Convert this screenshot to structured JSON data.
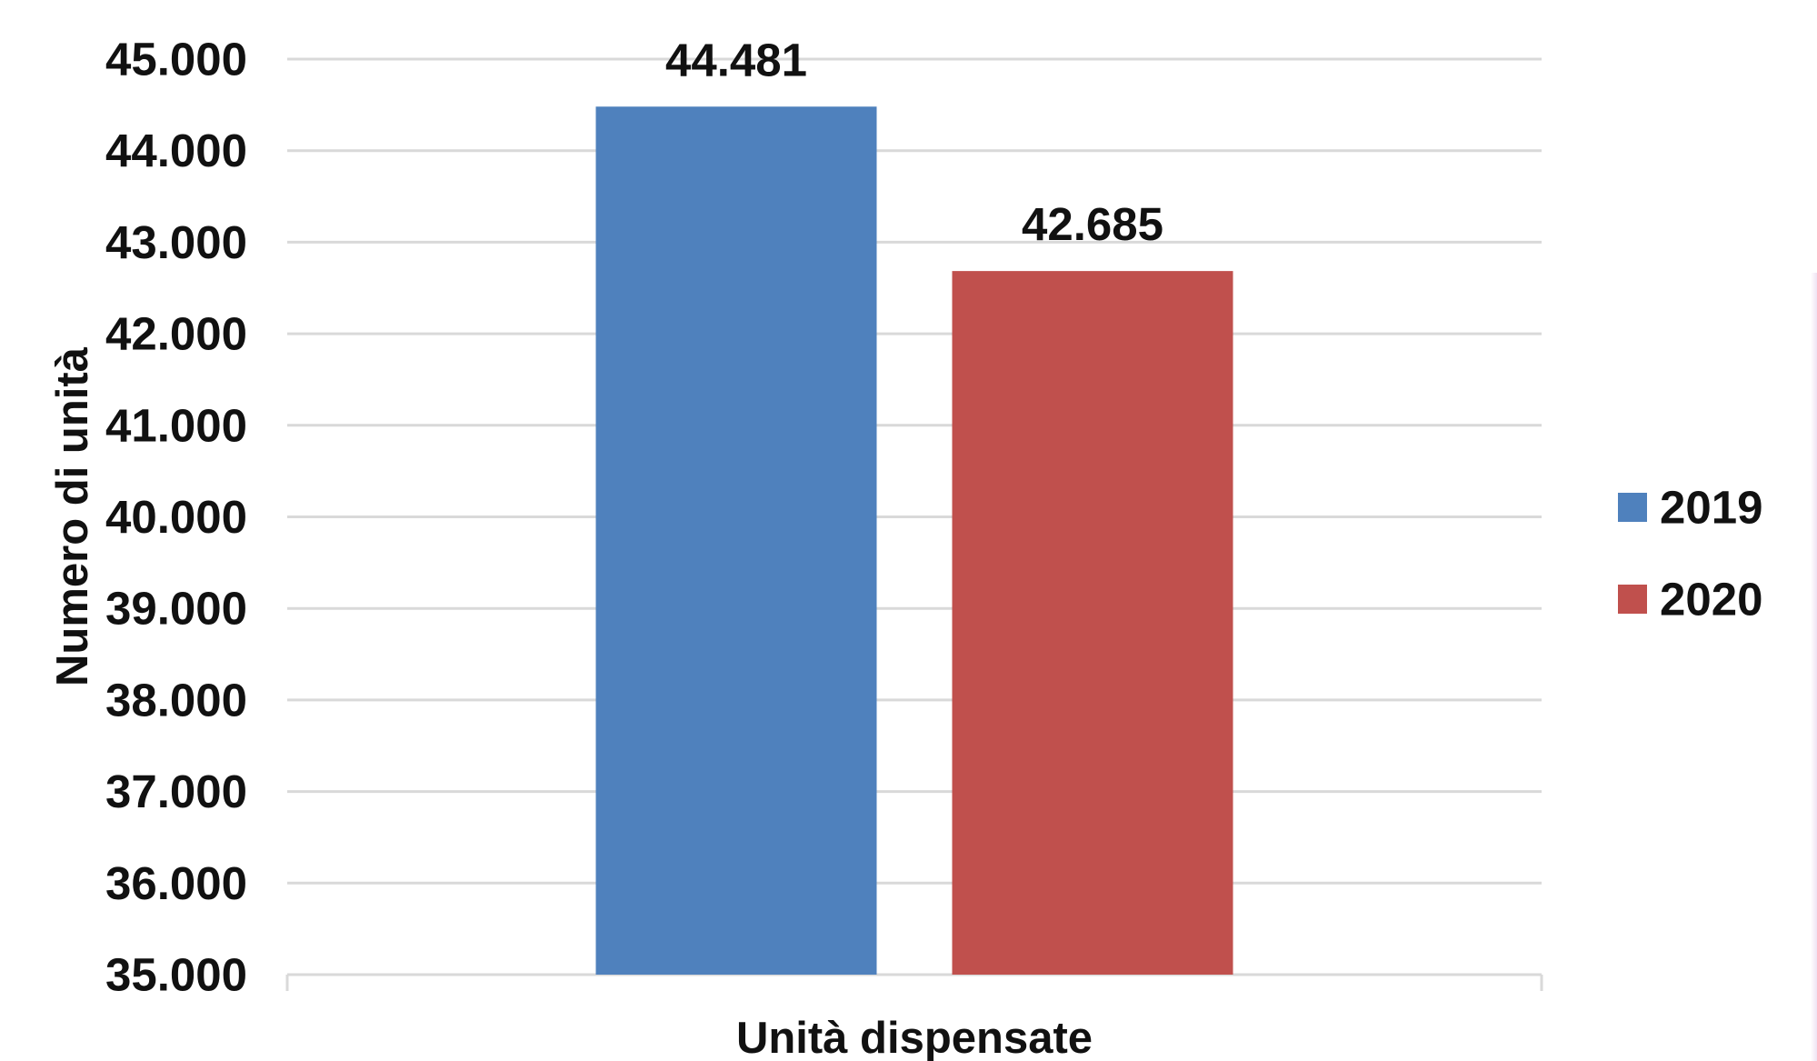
{
  "chart_data": {
    "type": "bar",
    "categories": [
      "Unità dispensate"
    ],
    "series": [
      {
        "name": "2019",
        "values": [
          44481
        ],
        "label": "44.481",
        "color": "#4f81bd"
      },
      {
        "name": "2020",
        "values": [
          42685
        ],
        "label": "42.685",
        "color": "#c0504d"
      }
    ],
    "title": "",
    "xlabel": "Unità dispensate",
    "ylabel": "Numero di unità",
    "ylim": [
      35000,
      45000
    ],
    "y_ticks": [
      35000,
      36000,
      37000,
      38000,
      39000,
      40000,
      41000,
      42000,
      43000,
      44000,
      45000
    ],
    "y_tick_labels": [
      "35.000",
      "36.000",
      "37.000",
      "38.000",
      "39.000",
      "40.000",
      "41.000",
      "42.000",
      "43.000",
      "44.000",
      "45.000"
    ],
    "grid": true,
    "grid_color": "#d9d9d9",
    "legend_position": "right"
  }
}
